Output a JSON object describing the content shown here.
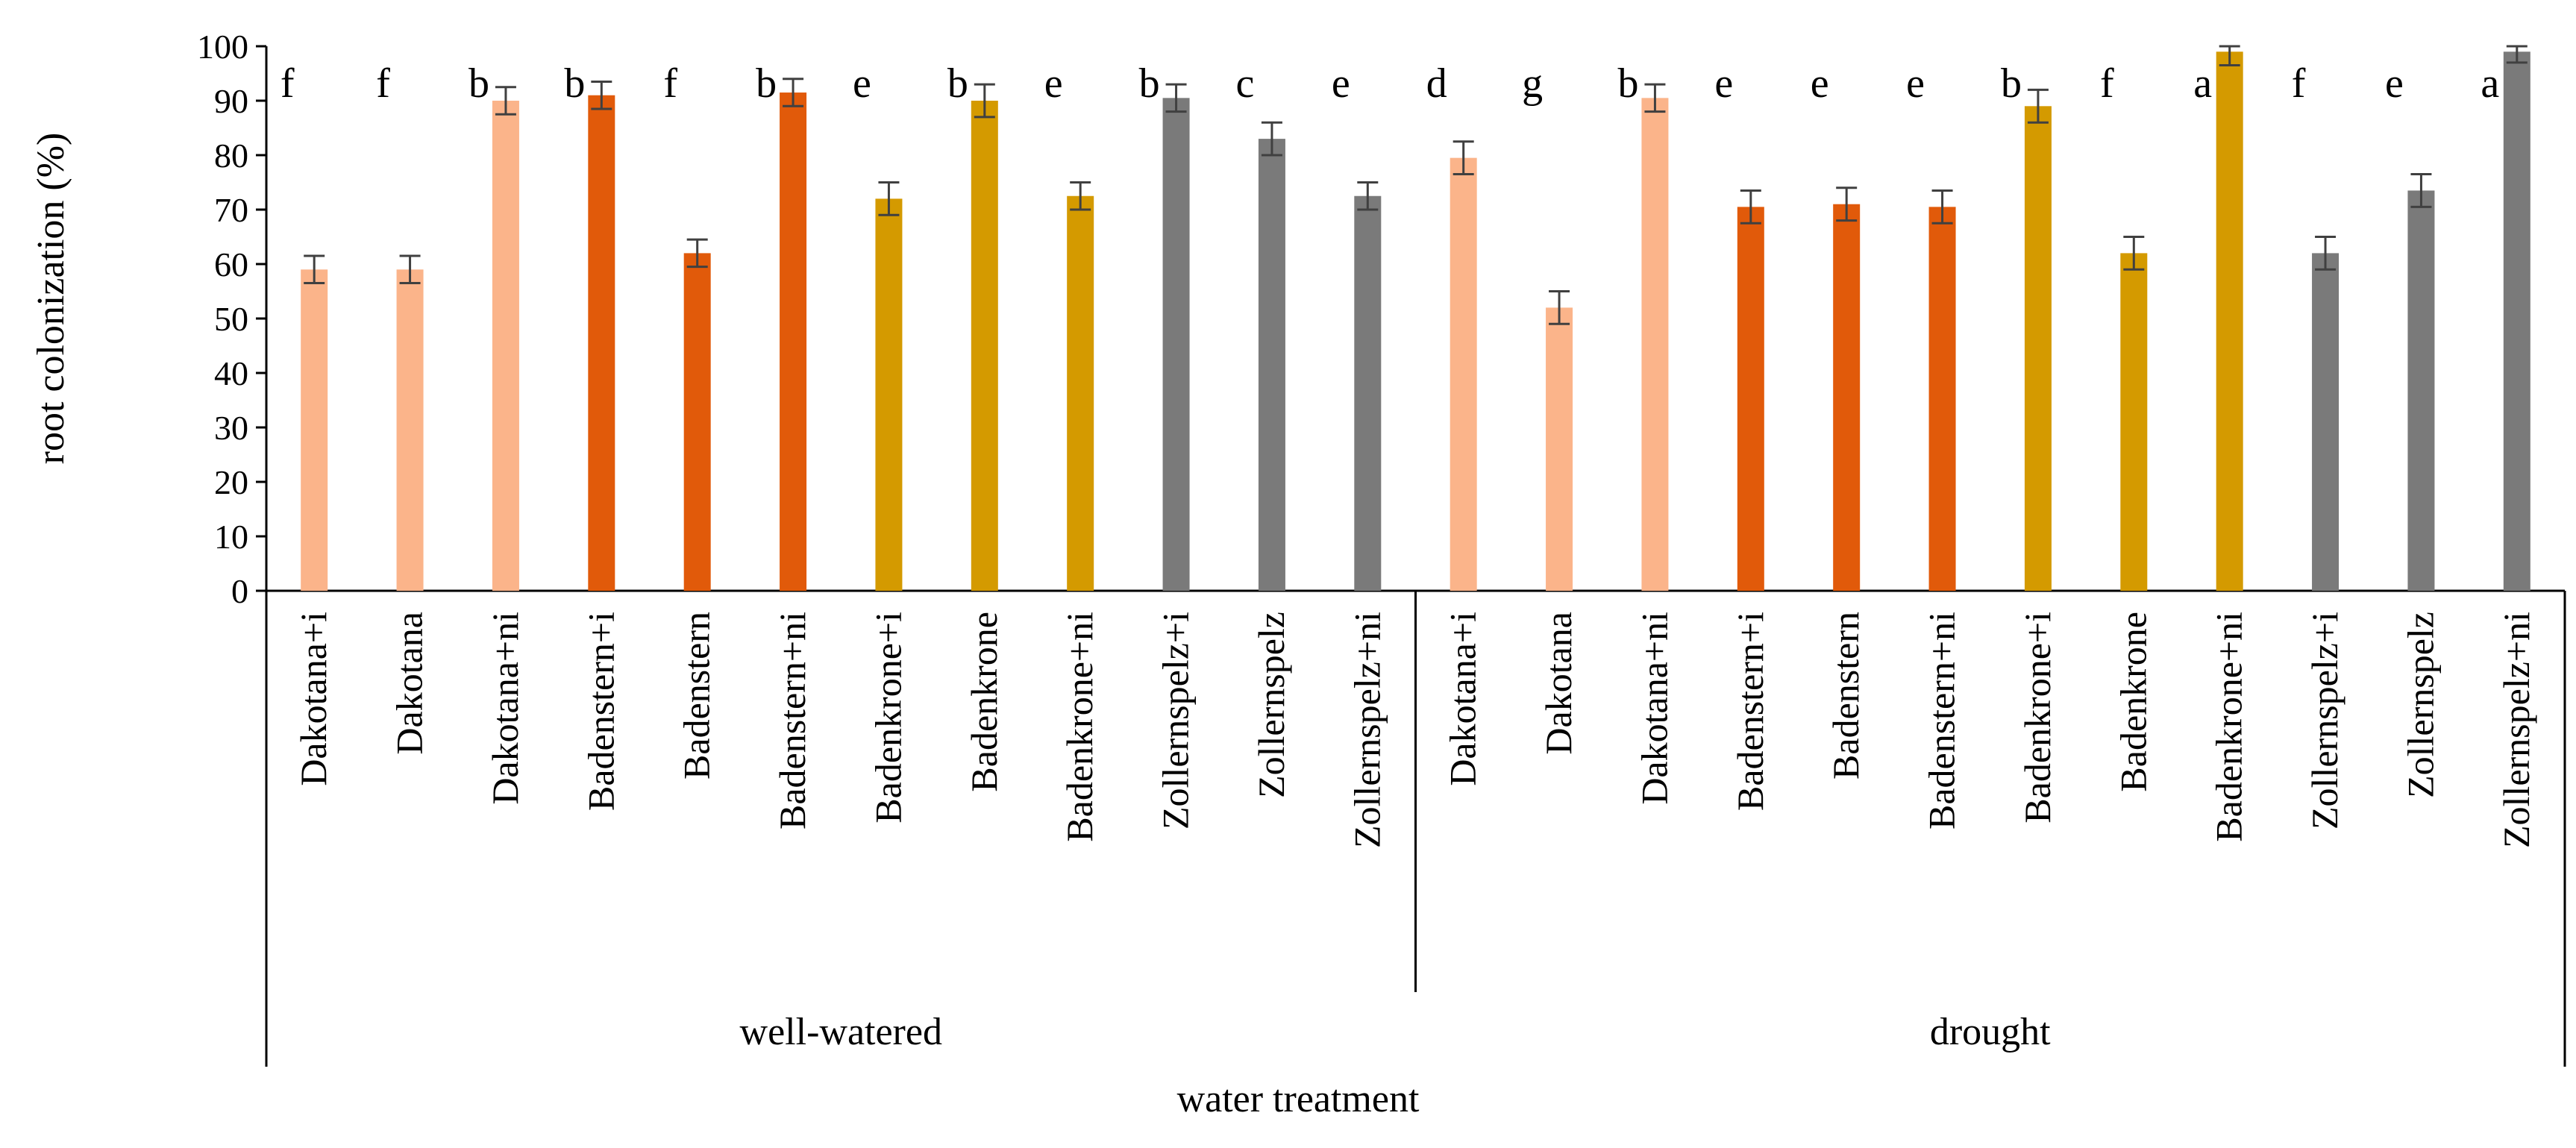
{
  "chart_data": {
    "type": "bar",
    "ylabel": "root colonization (%)",
    "xlabel": "water treatment",
    "ylim": [
      0,
      100
    ],
    "yticks": [
      "0",
      "10",
      "20",
      "30",
      "40",
      "50",
      "60",
      "70",
      "80",
      "90",
      "100"
    ],
    "grid": false,
    "groups": [
      {
        "name": "well-watered",
        "start": 0,
        "count": 12
      },
      {
        "name": "drought",
        "start": 12,
        "count": 12
      }
    ],
    "categories": [
      "Dakotana+i",
      "Dakotana",
      "Dakotana+ni",
      "Badenstern+i",
      "Badenstern",
      "Badenstern+ni",
      "Badenkrone+i",
      "Badenkrone",
      "Badenkrone+ni",
      "Zollernspelz+i",
      "Zollernspelz",
      "Zollernspelz+ni",
      "Dakotana+i",
      "Dakotana",
      "Dakotana+ni",
      "Badenstern+i",
      "Badenstern",
      "Badenstern+ni",
      "Badenkrone+i",
      "Badenkrone",
      "Badenkrone+ni",
      "Zollernspelz+i",
      "Zollernspelz",
      "Zollernspelz+ni"
    ],
    "values": [
      59,
      59,
      90,
      91,
      62,
      91.5,
      72,
      90,
      72.5,
      90.5,
      83,
      72.5,
      79.5,
      52,
      90.5,
      70.5,
      71,
      70.5,
      89,
      62,
      99,
      62,
      73.5,
      99
    ],
    "errors": [
      2.5,
      2.5,
      2.5,
      2.5,
      2.5,
      2.5,
      3,
      3,
      2.5,
      2.5,
      3,
      2.5,
      3,
      3,
      2.5,
      3,
      3,
      3,
      3,
      3,
      2.5,
      3,
      3,
      2
    ],
    "significance": [
      "f",
      "f",
      "b",
      "b",
      "f",
      "b",
      "e",
      "b",
      "e",
      "b",
      "c",
      "e",
      "d",
      "g",
      "b",
      "e",
      "e",
      "e",
      "b",
      "f",
      "a",
      "f",
      "e",
      "a"
    ],
    "cultivar_colors": {
      "Dakotana": "#FBB48A",
      "Badenstern": "#E15A0A",
      "Badenkrone": "#D49A00",
      "Zollernspelz": "#7A7A7A"
    },
    "bar_cultivars": [
      "Dakotana",
      "Dakotana",
      "Dakotana",
      "Badenstern",
      "Badenstern",
      "Badenstern",
      "Badenkrone",
      "Badenkrone",
      "Badenkrone",
      "Zollernspelz",
      "Zollernspelz",
      "Zollernspelz",
      "Dakotana",
      "Dakotana",
      "Dakotana",
      "Badenstern",
      "Badenstern",
      "Badenstern",
      "Badenkrone",
      "Badenkrone",
      "Badenkrone",
      "Zollernspelz",
      "Zollernspelz",
      "Zollernspelz"
    ],
    "axis_color": "#000000",
    "error_bar_color": "#404040"
  }
}
